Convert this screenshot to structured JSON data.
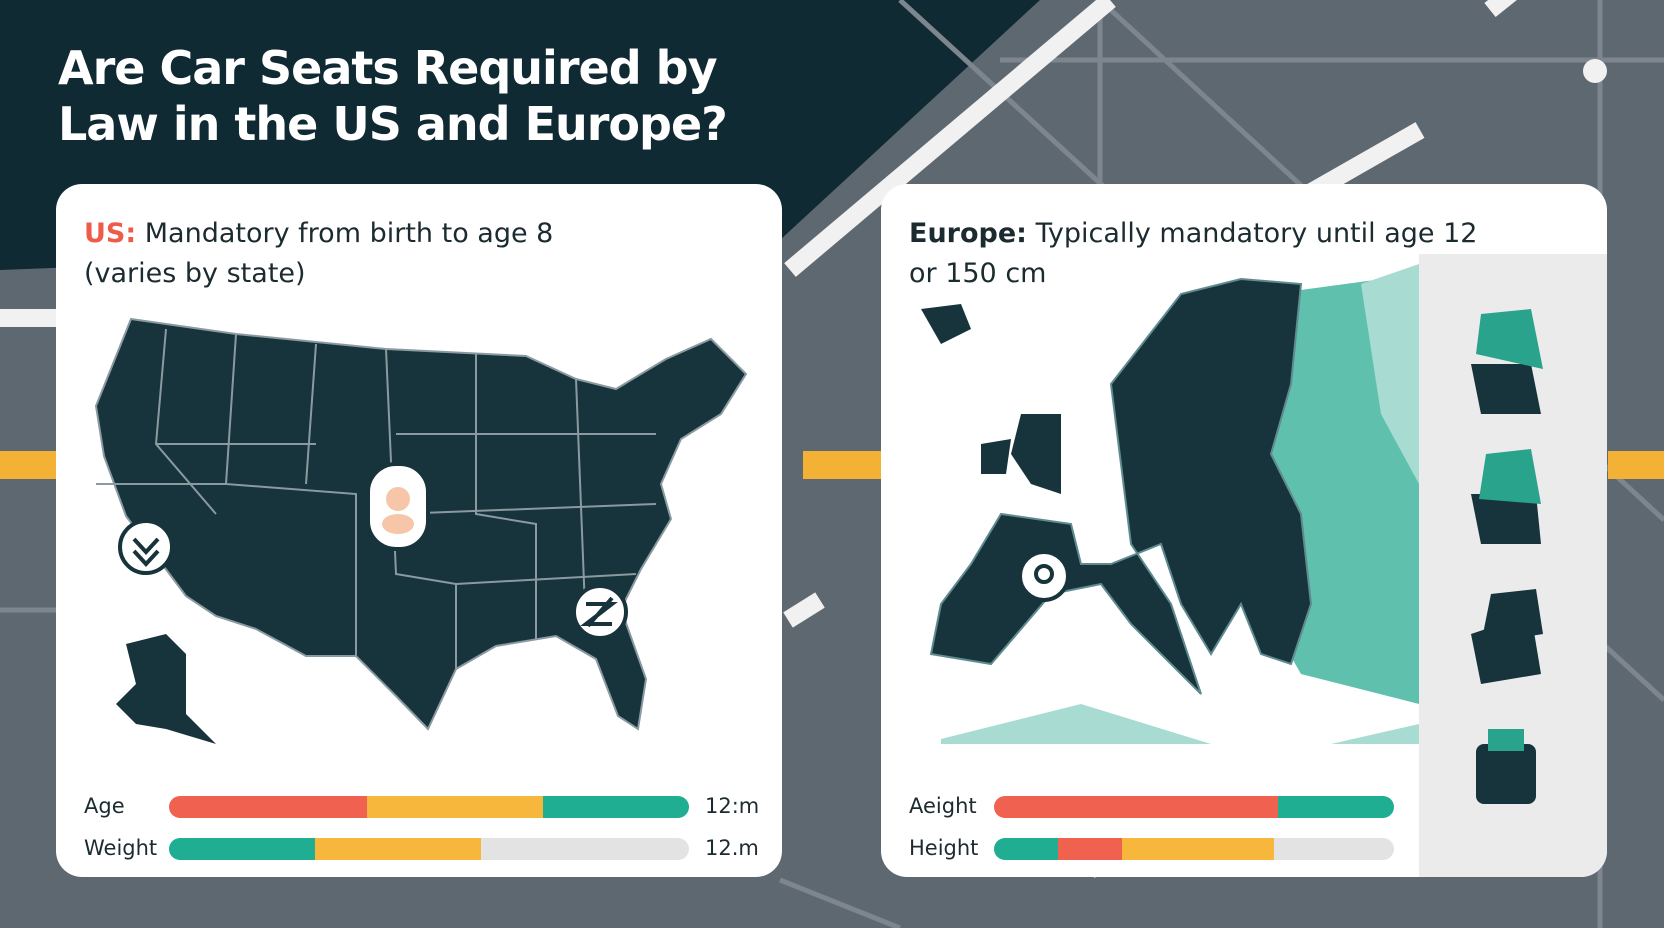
{
  "title": "Are Car Seats Required by Law in the US and Europe?",
  "panels": [
    {
      "label": "US:",
      "text": "Mandatory from birth to age 8 (varies by state)",
      "bars": [
        {
          "label": "Age",
          "end_label": "12:m",
          "segments": [
            {
              "value": 38,
              "color": "#f0614f"
            },
            {
              "value": 34,
              "color": "#f6b73c"
            },
            {
              "value": 28,
              "color": "#1fae91"
            }
          ]
        },
        {
          "label": "Weight",
          "end_label": "12.m",
          "segments": [
            {
              "value": 28,
              "color": "#1fae91"
            },
            {
              "value": 32,
              "color": "#f6b73c"
            },
            {
              "value": 40,
              "color": "#e3e3e3"
            }
          ]
        }
      ]
    },
    {
      "label": "Europe:",
      "text": "Typically mandatory until age 12 or 150 cm",
      "bars": [
        {
          "label": "Aeight",
          "segments": [
            {
              "value": 71,
              "color": "#f0614f"
            },
            {
              "value": 29,
              "color": "#1fae91"
            }
          ]
        },
        {
          "label": "Height",
          "segments": [
            {
              "value": 16,
              "color": "#1fae91"
            },
            {
              "value": 16,
              "color": "#f0614f"
            },
            {
              "value": 38,
              "color": "#f6b73c"
            },
            {
              "value": 30,
              "color": "#e3e3e3"
            }
          ]
        }
      ]
    }
  ]
}
